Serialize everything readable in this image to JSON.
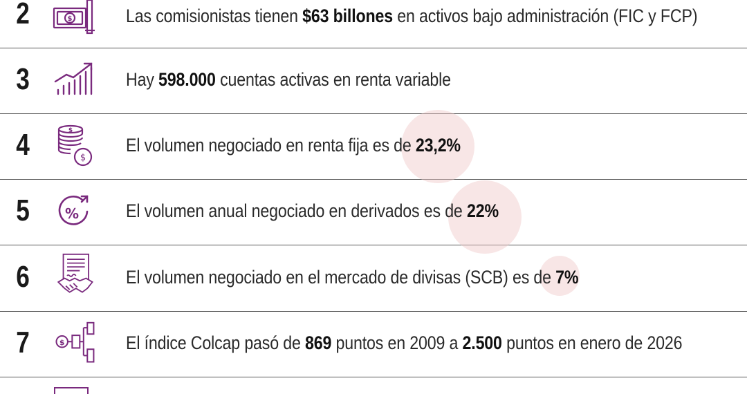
{
  "rows": [
    {
      "number": "2",
      "icon": "money-bill-icon",
      "t1": "Las comisionistas tienen ",
      "b1": "$63 billones",
      "t2": " en activos bajo administración (FIC y FCP)",
      "b2": "",
      "t3": ""
    },
    {
      "number": "3",
      "icon": "growth-chart-icon",
      "t1": "Hay ",
      "b1": "598.000",
      "t2": " cuentas activas en renta variable",
      "b2": "",
      "t3": ""
    },
    {
      "number": "4",
      "icon": "coin-stack-icon",
      "t1": "El volumen negociado en renta fija es de ",
      "b1": "23,2%",
      "t2": "",
      "b2": "",
      "t3": ""
    },
    {
      "number": "5",
      "icon": "percent-circle-icon",
      "t1": "El volumen anual negociado en derivados es de ",
      "b1": "22%",
      "t2": "",
      "b2": "",
      "t3": ""
    },
    {
      "number": "6",
      "icon": "handshake-contract-icon",
      "t1": "El volumen negociado en el mercado de divisas (SCB) es de ",
      "b1": "7%",
      "t2": "",
      "b2": "",
      "t3": ""
    },
    {
      "number": "7",
      "icon": "money-flow-diagram-icon",
      "t1": "El índice Colcap pasó de ",
      "b1": "869",
      "t2": " puntos en 2009 a ",
      "b2": "2.500",
      "t3": " puntos en enero de 2026"
    }
  ],
  "colors": {
    "icon": "#7a2a7e",
    "divider": "#555555",
    "bubble": "#f0c8c8"
  }
}
